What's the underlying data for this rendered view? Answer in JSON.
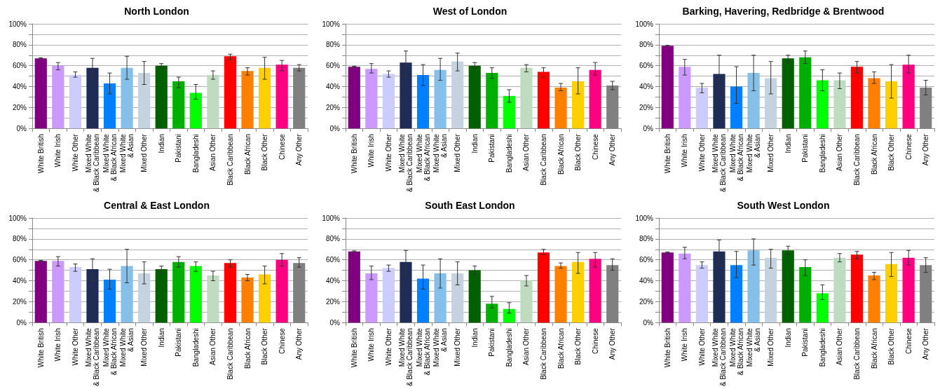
{
  "chart_data": [
    {
      "type": "bar",
      "title": "North London",
      "categories": [
        "White British",
        "White Irish",
        "White Other",
        "Mixed White\n& Black Caribbean",
        "Mixed White\n& Black African",
        "Mixed White\n& Asian",
        "Mixed Other",
        "Indian",
        "Pakistani",
        "Bangladeshi",
        "Asian Other",
        "Black Caribbean",
        "Black African",
        "Black Other",
        "Chinese",
        "Any Other"
      ],
      "colors": [
        "#800080",
        "#cc99ff",
        "#ccccff",
        "#1f2d56",
        "#0080ff",
        "#85c0eb",
        "#c5d3e0",
        "#006000",
        "#00b000",
        "#00ff00",
        "#c0dcc0",
        "#ff0000",
        "#ff8000",
        "#ffd000",
        "#ff0080",
        "#808080"
      ],
      "values": [
        67,
        60,
        51,
        58,
        43,
        58,
        53,
        60,
        45,
        34,
        51,
        69,
        55,
        58,
        61,
        58
      ],
      "errors": [
        [
          66.5,
          67.5
        ],
        [
          56,
          63
        ],
        [
          49,
          54
        ],
        [
          49,
          67
        ],
        [
          33,
          53
        ],
        [
          47,
          69
        ],
        [
          42,
          64
        ],
        [
          58,
          62
        ],
        [
          39,
          49
        ],
        [
          28,
          42
        ],
        [
          47,
          55
        ],
        [
          66,
          71
        ],
        [
          51,
          58
        ],
        [
          47,
          68
        ],
        [
          55,
          65
        ],
        [
          55,
          61
        ]
      ],
      "ylim": [
        0,
        100
      ],
      "yticks": [
        {
          "value": 0,
          "label": "0%"
        },
        {
          "value": 10,
          "label": null
        },
        {
          "value": 20,
          "label": "20%"
        },
        {
          "value": 30,
          "label": null
        },
        {
          "value": 40,
          "label": "40%"
        },
        {
          "value": 50,
          "label": null
        },
        {
          "value": 60,
          "label": "60%"
        },
        {
          "value": 70,
          "label": null
        },
        {
          "value": 80,
          "label": "80%"
        },
        {
          "value": 90,
          "label": null
        },
        {
          "value": 100,
          "label": "100%"
        }
      ],
      "grid": "y"
    },
    {
      "type": "bar",
      "title": "West of London",
      "categories": [
        "White British",
        "White Irish",
        "White Other",
        "Mixed White\n& Black Caribbean",
        "Mixed White\n& Black African",
        "Mixed White\n& Asian",
        "Mixed Other",
        "Indian",
        "Pakistani",
        "Bangladeshi",
        "Asian Other",
        "Black Caribbean",
        "Black African",
        "Black Other",
        "Chinese",
        "Any Other"
      ],
      "colors": [
        "#800080",
        "#cc99ff",
        "#ccccff",
        "#1f2d56",
        "#0080ff",
        "#85c0eb",
        "#c5d3e0",
        "#006000",
        "#00b000",
        "#00ff00",
        "#c0dcc0",
        "#ff0000",
        "#ff8000",
        "#ffd000",
        "#ff0080",
        "#808080"
      ],
      "values": [
        59,
        57,
        52,
        63,
        51,
        56,
        64,
        60,
        53,
        31,
        58,
        54,
        39,
        45,
        56,
        41
      ],
      "errors": [
        [
          58.5,
          59.5
        ],
        [
          53,
          62
        ],
        [
          49,
          55
        ],
        [
          50,
          74
        ],
        [
          41,
          61
        ],
        [
          46,
          67
        ],
        [
          55,
          72
        ],
        [
          58,
          63
        ],
        [
          48,
          58
        ],
        [
          25,
          37
        ],
        [
          54,
          61
        ],
        [
          49,
          58
        ],
        [
          36,
          43
        ],
        [
          33,
          58
        ],
        [
          51,
          63
        ],
        [
          37,
          45
        ]
      ],
      "ylim": [
        0,
        100
      ],
      "yticks": [
        {
          "value": 0,
          "label": "0%"
        },
        {
          "value": 10,
          "label": null
        },
        {
          "value": 20,
          "label": "20%"
        },
        {
          "value": 30,
          "label": null
        },
        {
          "value": 40,
          "label": "40%"
        },
        {
          "value": 50,
          "label": null
        },
        {
          "value": 60,
          "label": "60%"
        },
        {
          "value": 70,
          "label": null
        },
        {
          "value": 80,
          "label": "80%"
        },
        {
          "value": 90,
          "label": null
        },
        {
          "value": 100,
          "label": "100%"
        }
      ],
      "grid": "y"
    },
    {
      "type": "bar",
      "title": "Barking, Havering, Redbridge & Brentwood",
      "categories": [
        "White British",
        "White Irish",
        "White Other",
        "Mixed White\n& Black Caribbean",
        "Mixed White\n& Black African",
        "Mixed White\n& Asian",
        "Mixed Other",
        "Indian",
        "Pakistani",
        "Bangladeshi",
        "Asian Other",
        "Black Caribbean",
        "Black African",
        "Black Other",
        "Chinese",
        "Any Other"
      ],
      "colors": [
        "#800080",
        "#cc99ff",
        "#ccccff",
        "#1f2d56",
        "#0080ff",
        "#85c0eb",
        "#c5d3e0",
        "#006000",
        "#00b000",
        "#00ff00",
        "#c0dcc0",
        "#ff0000",
        "#ff8000",
        "#ffd000",
        "#ff0080",
        "#808080"
      ],
      "values": [
        79,
        59,
        39,
        52,
        40,
        53,
        48,
        67,
        68,
        46,
        46,
        59,
        48,
        45,
        61,
        39
      ],
      "errors": [
        [
          78.5,
          79.5
        ],
        [
          51,
          66
        ],
        [
          34,
          43
        ],
        [
          34,
          70
        ],
        [
          24,
          59
        ],
        [
          36,
          70
        ],
        [
          33,
          64
        ],
        [
          63,
          70
        ],
        [
          62,
          74
        ],
        [
          36,
          56
        ],
        [
          38,
          53
        ],
        [
          53,
          64
        ],
        [
          43,
          54
        ],
        [
          29,
          61
        ],
        [
          53,
          70
        ],
        [
          32,
          46
        ]
      ],
      "ylim": [
        0,
        100
      ],
      "yticks": [
        {
          "value": 0,
          "label": "0%"
        },
        {
          "value": 10,
          "label": null
        },
        {
          "value": 20,
          "label": "20%"
        },
        {
          "value": 30,
          "label": null
        },
        {
          "value": 40,
          "label": "40%"
        },
        {
          "value": 50,
          "label": null
        },
        {
          "value": 60,
          "label": "60%"
        },
        {
          "value": 70,
          "label": null
        },
        {
          "value": 80,
          "label": "80%"
        },
        {
          "value": 90,
          "label": null
        },
        {
          "value": 100,
          "label": "100%"
        }
      ],
      "grid": "y"
    },
    {
      "type": "bar",
      "title": "Central & East London",
      "categories": [
        "White British",
        "White Irish",
        "White Other",
        "Mixed White\n& Black Caribbean",
        "Mixed White\n& Black African",
        "Mixed White\n& Asian",
        "Mixed Other",
        "Indian",
        "Pakistani",
        "Bangladeshi",
        "Asian Other",
        "Black Caribbean",
        "Black African",
        "Black Other",
        "Chinese",
        "Any Other"
      ],
      "colors": [
        "#800080",
        "#cc99ff",
        "#ccccff",
        "#1f2d56",
        "#0080ff",
        "#85c0eb",
        "#c5d3e0",
        "#006000",
        "#00b000",
        "#00ff00",
        "#c0dcc0",
        "#ff0000",
        "#ff8000",
        "#ffd000",
        "#ff0080",
        "#808080"
      ],
      "values": [
        59,
        59,
        53,
        51,
        41,
        54,
        47,
        51,
        58,
        54,
        45,
        57,
        43,
        46,
        60,
        57
      ],
      "errors": [
        [
          58.5,
          59.5
        ],
        [
          54,
          63
        ],
        [
          49,
          56
        ],
        [
          40,
          61
        ],
        [
          32,
          51
        ],
        [
          38,
          70
        ],
        [
          37,
          58
        ],
        [
          47,
          54
        ],
        [
          53,
          63
        ],
        [
          49,
          58
        ],
        [
          40,
          49
        ],
        [
          53,
          60
        ],
        [
          40,
          46
        ],
        [
          37,
          54
        ],
        [
          54,
          66
        ],
        [
          53,
          62
        ]
      ],
      "ylim": [
        0,
        100
      ],
      "yticks": [
        {
          "value": 0,
          "label": "0%"
        },
        {
          "value": 10,
          "label": null
        },
        {
          "value": 20,
          "label": "20%"
        },
        {
          "value": 30,
          "label": null
        },
        {
          "value": 40,
          "label": "40%"
        },
        {
          "value": 50,
          "label": null
        },
        {
          "value": 60,
          "label": "60%"
        },
        {
          "value": 70,
          "label": null
        },
        {
          "value": 80,
          "label": "80%"
        },
        {
          "value": 90,
          "label": null
        },
        {
          "value": 100,
          "label": "100%"
        }
      ],
      "grid": "y"
    },
    {
      "type": "bar",
      "title": "South East London",
      "categories": [
        "White British",
        "White Irish",
        "White Other",
        "Mixed White\n& Black Caribbean",
        "Mixed White\n& Black African",
        "Mixed White\n& Asian",
        "Mixed Other",
        "Indian",
        "Pakistani",
        "Bangladeshi",
        "Asian Other",
        "Black Caribbean",
        "Black African",
        "Black Other",
        "Chinese",
        "Any Other"
      ],
      "colors": [
        "#800080",
        "#cc99ff",
        "#ccccff",
        "#1f2d56",
        "#0080ff",
        "#85c0eb",
        "#c5d3e0",
        "#006000",
        "#00b000",
        "#00ff00",
        "#c0dcc0",
        "#ff0000",
        "#ff8000",
        "#ffd000",
        "#ff0080",
        "#808080"
      ],
      "values": [
        68,
        47,
        52,
        58,
        42,
        47,
        47,
        50,
        18,
        13,
        40,
        67,
        54,
        58,
        61,
        55
      ],
      "errors": [
        [
          67.5,
          68.5
        ],
        [
          41,
          54
        ],
        [
          49,
          55
        ],
        [
          45,
          69
        ],
        [
          32,
          55
        ],
        [
          33,
          61
        ],
        [
          36,
          58
        ],
        [
          46,
          54
        ],
        [
          14,
          25
        ],
        [
          9,
          19
        ],
        [
          35,
          45
        ],
        [
          65,
          70
        ],
        [
          52,
          57
        ],
        [
          47,
          67
        ],
        [
          53,
          67
        ],
        [
          50,
          61
        ]
      ],
      "ylim": [
        0,
        100
      ],
      "yticks": [
        {
          "value": 0,
          "label": "0%"
        },
        {
          "value": 10,
          "label": null
        },
        {
          "value": 20,
          "label": "20%"
        },
        {
          "value": 30,
          "label": null
        },
        {
          "value": 40,
          "label": "40%"
        },
        {
          "value": 50,
          "label": null
        },
        {
          "value": 60,
          "label": "60%"
        },
        {
          "value": 70,
          "label": null
        },
        {
          "value": 80,
          "label": "80%"
        },
        {
          "value": 90,
          "label": null
        },
        {
          "value": 100,
          "label": "100%"
        }
      ],
      "grid": "y"
    },
    {
      "type": "bar",
      "title": "South West London",
      "categories": [
        "White British",
        "White Irish",
        "White Other",
        "Mixed White\n& Black Caribbean",
        "Mixed White\n& Black African",
        "Mixed White\n& Asian",
        "Mixed Other",
        "Indian",
        "Pakistani",
        "Bangladeshi",
        "Asian Other",
        "Black Caribbean",
        "Black African",
        "Black Other",
        "Chinese",
        "Any Other"
      ],
      "colors": [
        "#800080",
        "#cc99ff",
        "#ccccff",
        "#1f2d56",
        "#0080ff",
        "#85c0eb",
        "#c5d3e0",
        "#006000",
        "#00b000",
        "#00ff00",
        "#c0dcc0",
        "#ff0000",
        "#ff8000",
        "#ffd000",
        "#ff0080",
        "#808080"
      ],
      "values": [
        67,
        66,
        55,
        68,
        55,
        69,
        62,
        69,
        53,
        28,
        62,
        65,
        45,
        56,
        62,
        55
      ],
      "errors": [
        [
          66.5,
          67.5
        ],
        [
          61,
          72
        ],
        [
          52,
          58
        ],
        [
          55,
          79
        ],
        [
          43,
          68
        ],
        [
          55,
          80
        ],
        [
          52,
          70
        ],
        [
          65,
          73
        ],
        [
          45,
          60
        ],
        [
          22,
          36
        ],
        [
          58,
          66
        ],
        [
          61,
          68
        ],
        [
          41,
          48
        ],
        [
          44,
          67
        ],
        [
          55,
          69
        ],
        [
          48,
          62
        ]
      ],
      "ylim": [
        0,
        100
      ],
      "yticks": [
        {
          "value": 0,
          "label": "0%"
        },
        {
          "value": 10,
          "label": null
        },
        {
          "value": 20,
          "label": "20%"
        },
        {
          "value": 30,
          "label": null
        },
        {
          "value": 40,
          "label": "40%"
        },
        {
          "value": 50,
          "label": null
        },
        {
          "value": 60,
          "label": "60%"
        },
        {
          "value": 70,
          "label": null
        },
        {
          "value": 80,
          "label": "80%"
        },
        {
          "value": 90,
          "label": null
        },
        {
          "value": 100,
          "label": "100%"
        }
      ],
      "grid": "y"
    }
  ]
}
